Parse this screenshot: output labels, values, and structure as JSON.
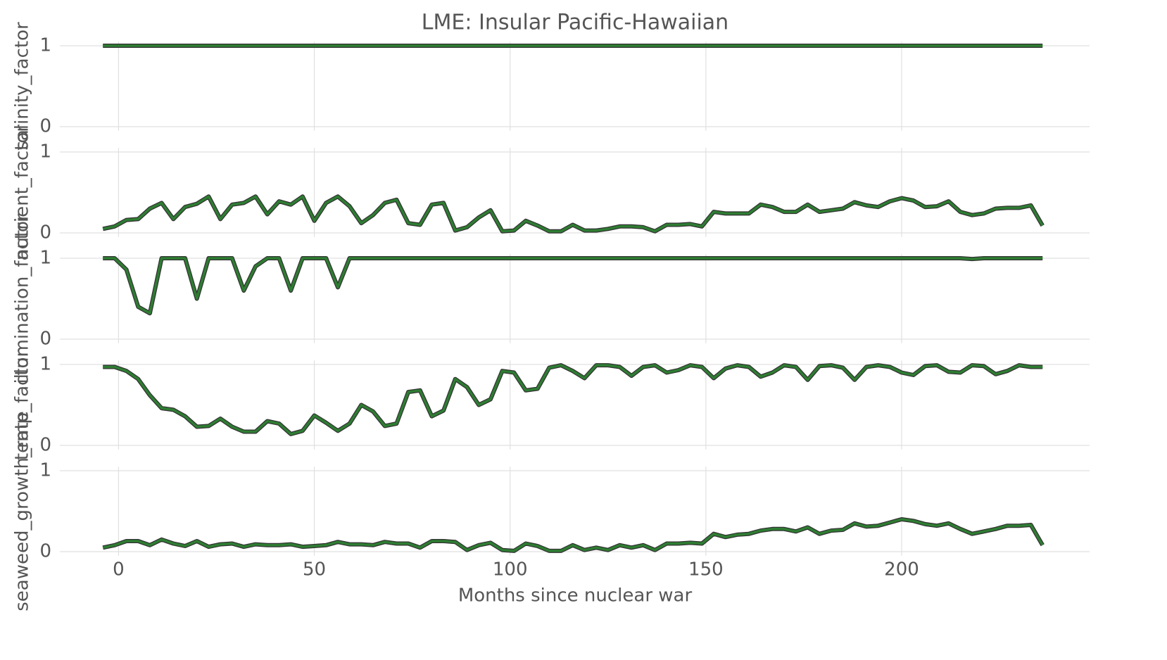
{
  "title": "LME: Insular Pacific-Hawaiian",
  "xlabel": "Months since nuclear war",
  "chart_data": [
    {
      "type": "line",
      "ylabel": "salinity_factor",
      "color": "#2e7d32",
      "xlim": [
        -15,
        248
      ],
      "ylim": [
        -0.05,
        1.05
      ],
      "yticks": [
        0,
        1
      ],
      "xticks": [
        0,
        50,
        100,
        150,
        200
      ],
      "grid": true,
      "x": [
        -4,
        -1,
        2,
        5,
        8,
        11,
        14,
        17,
        20,
        23,
        26,
        29,
        32,
        35,
        38,
        41,
        44,
        47,
        50,
        53,
        56,
        59,
        62,
        65,
        68,
        71,
        74,
        77,
        80,
        83,
        86,
        89,
        92,
        95,
        98,
        101,
        104,
        107,
        110,
        113,
        116,
        119,
        122,
        125,
        128,
        131,
        134,
        137,
        140,
        143,
        146,
        149,
        152,
        155,
        158,
        161,
        164,
        167,
        170,
        173,
        176,
        179,
        182,
        185,
        188,
        191,
        194,
        197,
        200,
        203,
        206,
        209,
        212,
        215,
        218,
        221,
        224,
        227,
        230,
        233,
        236
      ],
      "values": [
        1,
        1,
        1,
        1,
        1,
        1,
        1,
        1,
        1,
        1,
        1,
        1,
        1,
        1,
        1,
        1,
        1,
        1,
        1,
        1,
        1,
        1,
        1,
        1,
        1,
        1,
        1,
        1,
        1,
        1,
        1,
        1,
        1,
        1,
        1,
        1,
        1,
        1,
        1,
        1,
        1,
        1,
        1,
        1,
        1,
        1,
        1,
        1,
        1,
        1,
        1,
        1,
        1,
        1,
        1,
        1,
        1,
        1,
        1,
        1,
        1,
        1,
        1,
        1,
        1,
        1,
        1,
        1,
        1,
        1,
        1,
        1,
        1,
        1,
        1,
        1,
        1,
        1,
        1,
        1,
        1
      ]
    },
    {
      "type": "line",
      "ylabel": "nutrient_factor",
      "color": "#2e7d32",
      "xlim": [
        -15,
        248
      ],
      "ylim": [
        -0.05,
        1.05
      ],
      "yticks": [
        0,
        1
      ],
      "xticks": [
        0,
        50,
        100,
        150,
        200
      ],
      "grid": true,
      "x": [
        -4,
        -1,
        2,
        5,
        8,
        11,
        14,
        17,
        20,
        23,
        26,
        29,
        32,
        35,
        38,
        41,
        44,
        47,
        50,
        53,
        56,
        59,
        62,
        65,
        68,
        71,
        74,
        77,
        80,
        83,
        86,
        89,
        92,
        95,
        98,
        101,
        104,
        107,
        110,
        113,
        116,
        119,
        122,
        125,
        128,
        131,
        134,
        137,
        140,
        143,
        146,
        149,
        152,
        155,
        158,
        161,
        164,
        167,
        170,
        173,
        176,
        179,
        182,
        185,
        188,
        191,
        194,
        197,
        200,
        203,
        206,
        209,
        212,
        215,
        218,
        221,
        224,
        227,
        230,
        233,
        236
      ],
      "values": [
        0.05,
        0.08,
        0.16,
        0.17,
        0.3,
        0.37,
        0.17,
        0.32,
        0.36,
        0.45,
        0.17,
        0.35,
        0.37,
        0.45,
        0.23,
        0.39,
        0.35,
        0.45,
        0.15,
        0.37,
        0.45,
        0.33,
        0.12,
        0.22,
        0.37,
        0.41,
        0.12,
        0.1,
        0.35,
        0.37,
        0.03,
        0.07,
        0.19,
        0.28,
        0.02,
        0.03,
        0.15,
        0.09,
        0.02,
        0.02,
        0.1,
        0.03,
        0.03,
        0.05,
        0.08,
        0.08,
        0.07,
        0.02,
        0.1,
        0.1,
        0.11,
        0.08,
        0.26,
        0.24,
        0.24,
        0.24,
        0.35,
        0.32,
        0.26,
        0.26,
        0.35,
        0.26,
        0.28,
        0.3,
        0.38,
        0.34,
        0.32,
        0.39,
        0.43,
        0.4,
        0.32,
        0.33,
        0.39,
        0.26,
        0.22,
        0.24,
        0.3,
        0.31,
        0.31,
        0.34,
        0.09
      ]
    },
    {
      "type": "line",
      "ylabel": "illumination_factor",
      "color": "#2e7d32",
      "xlim": [
        -15,
        248
      ],
      "ylim": [
        -0.05,
        1.05
      ],
      "yticks": [
        0,
        1
      ],
      "xticks": [
        0,
        50,
        100,
        150,
        200
      ],
      "grid": true,
      "x": [
        -4,
        -1,
        2,
        5,
        8,
        11,
        14,
        17,
        20,
        23,
        26,
        29,
        32,
        35,
        38,
        41,
        44,
        47,
        50,
        53,
        56,
        59,
        62,
        65,
        68,
        71,
        74,
        77,
        80,
        83,
        86,
        89,
        92,
        95,
        98,
        101,
        104,
        107,
        110,
        113,
        116,
        119,
        122,
        125,
        128,
        131,
        134,
        137,
        140,
        143,
        146,
        149,
        152,
        155,
        158,
        161,
        164,
        167,
        170,
        173,
        176,
        179,
        182,
        185,
        188,
        191,
        194,
        197,
        200,
        203,
        206,
        209,
        212,
        215,
        218,
        221,
        224,
        227,
        230,
        233,
        236
      ],
      "values": [
        1,
        1,
        0.86,
        0.4,
        0.32,
        1,
        1,
        1,
        0.5,
        1,
        1,
        1,
        0.6,
        0.9,
        1,
        1,
        0.6,
        1,
        1,
        1,
        0.64,
        1,
        1,
        1,
        1,
        1,
        1,
        1,
        1,
        1,
        1,
        1,
        1,
        1,
        1,
        1,
        1,
        1,
        1,
        1,
        1,
        1,
        1,
        1,
        1,
        1,
        1,
        1,
        1,
        1,
        1,
        1,
        1,
        1,
        1,
        1,
        1,
        1,
        1,
        1,
        1,
        1,
        1,
        1,
        1,
        1,
        1,
        1,
        1,
        1,
        1,
        1,
        1,
        1,
        0.99,
        1,
        1,
        1,
        1,
        1,
        1
      ]
    },
    {
      "type": "line",
      "ylabel": "temp_factor",
      "color": "#2e7d32",
      "xlim": [
        -15,
        248
      ],
      "ylim": [
        -0.05,
        1.05
      ],
      "yticks": [
        0,
        1
      ],
      "xticks": [
        0,
        50,
        100,
        150,
        200
      ],
      "grid": true,
      "x": [
        -4,
        -1,
        2,
        5,
        8,
        11,
        14,
        17,
        20,
        23,
        26,
        29,
        32,
        35,
        38,
        41,
        44,
        47,
        50,
        53,
        56,
        59,
        62,
        65,
        68,
        71,
        74,
        77,
        80,
        83,
        86,
        89,
        92,
        95,
        98,
        101,
        104,
        107,
        110,
        113,
        116,
        119,
        122,
        125,
        128,
        131,
        134,
        137,
        140,
        143,
        146,
        149,
        152,
        155,
        158,
        161,
        164,
        167,
        170,
        173,
        176,
        179,
        182,
        185,
        188,
        191,
        194,
        197,
        200,
        203,
        206,
        209,
        212,
        215,
        218,
        221,
        224,
        227,
        230,
        233,
        236
      ],
      "values": [
        0.97,
        0.97,
        0.92,
        0.82,
        0.62,
        0.46,
        0.44,
        0.36,
        0.23,
        0.24,
        0.33,
        0.23,
        0.17,
        0.17,
        0.3,
        0.27,
        0.14,
        0.18,
        0.37,
        0.28,
        0.18,
        0.27,
        0.5,
        0.42,
        0.24,
        0.27,
        0.66,
        0.68,
        0.36,
        0.43,
        0.82,
        0.72,
        0.5,
        0.57,
        0.92,
        0.9,
        0.68,
        0.7,
        0.96,
        0.99,
        0.92,
        0.83,
        0.99,
        0.99,
        0.97,
        0.86,
        0.97,
        0.99,
        0.9,
        0.93,
        0.99,
        0.97,
        0.83,
        0.95,
        0.99,
        0.97,
        0.85,
        0.9,
        0.99,
        0.97,
        0.81,
        0.98,
        0.99,
        0.96,
        0.81,
        0.97,
        0.99,
        0.97,
        0.9,
        0.87,
        0.98,
        0.99,
        0.91,
        0.9,
        0.99,
        0.98,
        0.88,
        0.92,
        0.99,
        0.97,
        0.97
      ]
    },
    {
      "type": "line",
      "ylabel": "seaweed_growth_rate",
      "color": "#2e7d32",
      "xlim": [
        -15,
        248
      ],
      "ylim": [
        -0.05,
        1.05
      ],
      "yticks": [
        0,
        1
      ],
      "xticks": [
        0,
        50,
        100,
        150,
        200
      ],
      "grid": true,
      "x": [
        -4,
        -1,
        2,
        5,
        8,
        11,
        14,
        17,
        20,
        23,
        26,
        29,
        32,
        35,
        38,
        41,
        44,
        47,
        50,
        53,
        56,
        59,
        62,
        65,
        68,
        71,
        74,
        77,
        80,
        83,
        86,
        89,
        92,
        95,
        98,
        101,
        104,
        107,
        110,
        113,
        116,
        119,
        122,
        125,
        128,
        131,
        134,
        137,
        140,
        143,
        146,
        149,
        152,
        155,
        158,
        161,
        164,
        167,
        170,
        173,
        176,
        179,
        182,
        185,
        188,
        191,
        194,
        197,
        200,
        203,
        206,
        209,
        212,
        215,
        218,
        221,
        224,
        227,
        230,
        233,
        236
      ],
      "values": [
        0.05,
        0.08,
        0.13,
        0.13,
        0.08,
        0.15,
        0.1,
        0.07,
        0.13,
        0.06,
        0.09,
        0.1,
        0.06,
        0.09,
        0.08,
        0.08,
        0.09,
        0.06,
        0.07,
        0.08,
        0.12,
        0.09,
        0.09,
        0.08,
        0.12,
        0.1,
        0.1,
        0.05,
        0.13,
        0.13,
        0.12,
        0.02,
        0.08,
        0.11,
        0.02,
        0.01,
        0.1,
        0.07,
        0.01,
        0.01,
        0.08,
        0.02,
        0.05,
        0.02,
        0.08,
        0.05,
        0.08,
        0.02,
        0.1,
        0.1,
        0.11,
        0.1,
        0.22,
        0.18,
        0.21,
        0.22,
        0.26,
        0.28,
        0.28,
        0.25,
        0.3,
        0.22,
        0.26,
        0.27,
        0.35,
        0.31,
        0.32,
        0.36,
        0.4,
        0.38,
        0.34,
        0.32,
        0.35,
        0.28,
        0.22,
        0.25,
        0.28,
        0.32,
        0.32,
        0.33,
        0.08
      ]
    }
  ]
}
